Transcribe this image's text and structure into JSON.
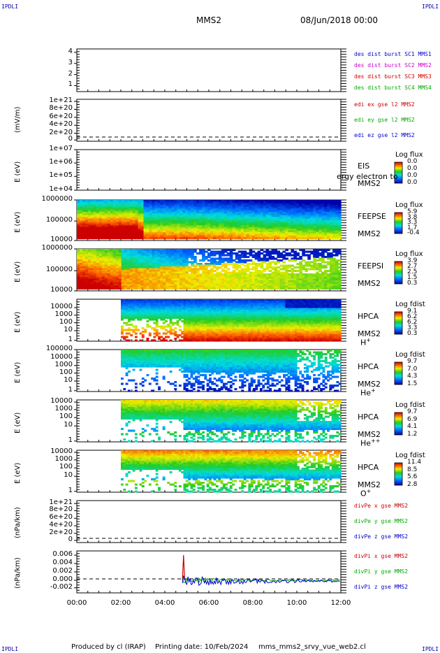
{
  "corners": {
    "tl": "IPDLI",
    "tr": "IPDLI",
    "bl": "IPDLI",
    "br": "IPDLI"
  },
  "header": {
    "title": "MMS2",
    "date": "08/Jun/2018 00:00"
  },
  "footer": {
    "produced": "Produced by cl (IRAP)",
    "printing": "Printing date: 10/Feb/2024",
    "file": "mms_mms2_srvy_vue_web2.cl"
  },
  "colors": {
    "mms1": "#0000cc",
    "mms2": "#cc00cc",
    "mms3": "#cc0000",
    "mms4": "#00aa00",
    "x": "#cc0000",
    "y": "#00aa00",
    "z": "#0000cc"
  },
  "panels": [
    {
      "id": "des-dist",
      "ylabel": "",
      "yticks": [
        "4",
        "3",
        "2",
        "1"
      ],
      "legend": [
        {
          "text": "des dist burst SC1 MMS1",
          "color": "mms1"
        },
        {
          "text": "des dist burst SC2 MMS2",
          "color": "mms2"
        },
        {
          "text": "des dist burst SC3 MMS3",
          "color": "mms3"
        },
        {
          "text": "des dist burst SC4 MMS4",
          "color": "mms4"
        }
      ]
    },
    {
      "id": "edi-e",
      "ylabel": "(mV/m)",
      "yticks": [
        "1e+21",
        "8e+20",
        "6e+20",
        "4e+20",
        "2e+20",
        "0"
      ],
      "legend": [
        {
          "text": "edi ex gse l2 MMS2",
          "color": "x"
        },
        {
          "text": "edi ey gse l2 MMS2",
          "color": "y"
        },
        {
          "text": "edi ez gse l2 MMS2",
          "color": "z"
        }
      ]
    },
    {
      "id": "eis",
      "ylabel": "E (eV)",
      "yticks": [
        "1e+07",
        "1e+06",
        "1e+05",
        "1e+04"
      ],
      "labels": [
        "EIS",
        "MMS2"
      ],
      "overlay": "ergy electron to",
      "colorbar": {
        "title": "Log flux",
        "values": [
          "0.0",
          "0.0",
          "0.0",
          "0.0"
        ]
      }
    },
    {
      "id": "feepse",
      "ylabel": "E (eV)",
      "yticks": [
        "1000000",
        "100000",
        "10000"
      ],
      "labels": [
        "FEEPSE",
        "MMS2"
      ],
      "colorbar": {
        "title": "Log flux",
        "values": [
          "5.9",
          "3.8",
          "3.3",
          "1.7",
          "-0.4"
        ]
      }
    },
    {
      "id": "feepsi",
      "ylabel": "E (eV)",
      "yticks": [
        "1000000",
        "100000",
        "10000"
      ],
      "labels": [
        "FEEPSI",
        "MMS2"
      ],
      "colorbar": {
        "title": "Log flux",
        "values": [
          "3.9",
          "2.7",
          "2.5",
          "1.5",
          "0.3"
        ]
      }
    },
    {
      "id": "hpca-h",
      "ylabel": "E (eV)",
      "yticks": [
        "10000",
        "1000",
        "100",
        "10",
        "1"
      ],
      "labels": [
        "HPCA",
        "MMS2"
      ],
      "species": "H",
      "charge": "+",
      "colorbar": {
        "title": "Log fdist",
        "values": [
          "9.1",
          "6.2",
          "6.2",
          "3.3",
          "0.3"
        ]
      }
    },
    {
      "id": "hpca-he",
      "ylabel": "E (eV)",
      "yticks": [
        "100000",
        "10000",
        "1000",
        "100",
        "10",
        "1"
      ],
      "labels": [
        "HPCA",
        "MMS2"
      ],
      "species": "He",
      "charge": "+",
      "colorbar": {
        "title": "Log fdist",
        "values": [
          "9.7",
          "7.0",
          "4.3",
          "1.5"
        ]
      }
    },
    {
      "id": "hpca-he2",
      "ylabel": "E (eV)",
      "yticks": [
        "10000",
        "1000",
        "100",
        "10",
        "1"
      ],
      "labels": [
        "HPCA",
        "MMS2"
      ],
      "species": "He",
      "charge": "++",
      "colorbar": {
        "title": "Log fdist",
        "values": [
          "9.7",
          "6.9",
          "4.1",
          "1.2"
        ]
      }
    },
    {
      "id": "hpca-o",
      "ylabel": "E (eV)",
      "yticks": [
        "10000",
        "1000",
        "100",
        "10",
        "1"
      ],
      "labels": [
        "HPCA",
        "MMS2"
      ],
      "species": "O",
      "charge": "+",
      "colorbar": {
        "title": "Log fdist",
        "values": [
          "11.4",
          "8.5",
          "5.6",
          "2.8"
        ]
      }
    },
    {
      "id": "divpe",
      "ylabel": "(nPa/km)",
      "yticks": [
        "1e+21",
        "8e+20",
        "6e+20",
        "4e+20",
        "2e+20",
        "0"
      ],
      "legend": [
        {
          "text": "divPe x gse MMS2",
          "color": "x"
        },
        {
          "text": "divPe y gse MMS2",
          "color": "y"
        },
        {
          "text": "divPe z gse MMS2",
          "color": "z"
        }
      ]
    },
    {
      "id": "divpi",
      "ylabel": "(nPa/km)",
      "yticks": [
        "0.006",
        "0.004",
        "0.002",
        "0.000",
        "-0.002"
      ],
      "legend": [
        {
          "text": "divPi x gse MMS2",
          "color": "x"
        },
        {
          "text": "divPi y gse MMS2",
          "color": "y"
        },
        {
          "text": "divPi z gse MMS2",
          "color": "z"
        }
      ]
    }
  ],
  "xaxis": {
    "ticks": [
      "00:00",
      "02:00",
      "04:00",
      "06:00",
      "08:00",
      "10:00",
      "12:00"
    ]
  },
  "chart_data": {
    "type": "heatmap",
    "title": "MMS2",
    "x_range": [
      "00:00",
      "12:00"
    ],
    "divpi_x": {
      "t": [
        4.8,
        4.85,
        4.9
      ],
      "v": [
        0.0,
        0.006,
        0.0
      ]
    },
    "divpi_ylim": [
      -0.003,
      0.007
    ]
  }
}
